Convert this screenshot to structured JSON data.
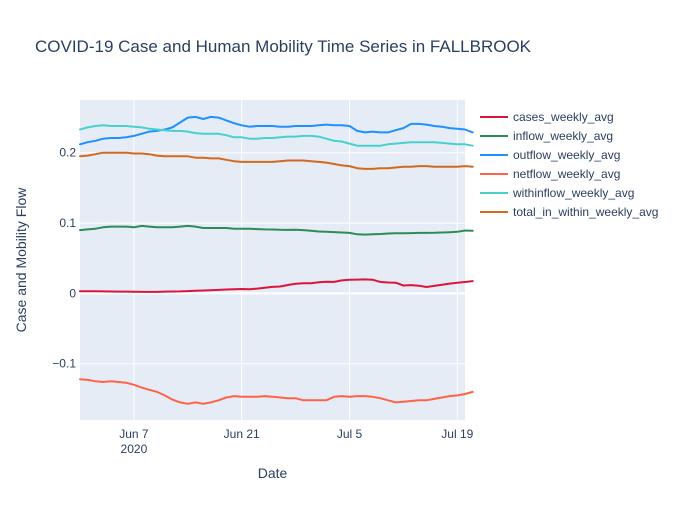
{
  "chart_data": {
    "type": "line",
    "title": "COVID-19 Case and Human Mobility Time Series in FALLBROOK",
    "xlabel": "Date",
    "ylabel": "Case and Mobility Flow",
    "x_start": "2020-05-31",
    "x_ticks": [
      {
        "date": "2020-06-07",
        "label": "Jun 7"
      },
      {
        "date": "2020-06-21",
        "label": "Jun 21"
      },
      {
        "date": "2020-07-05",
        "label": "Jul 5"
      },
      {
        "date": "2020-07-19",
        "label": "Jul 19"
      }
    ],
    "x_year_label": "2020",
    "xlim": [
      "2020-05-31",
      "2020-07-20"
    ],
    "ylim": [
      -0.18,
      0.275
    ],
    "y_ticks": [
      {
        "value": -0.1,
        "label": "−0.1"
      },
      {
        "value": 0,
        "label": "0"
      },
      {
        "value": 0.1,
        "label": "0.1"
      },
      {
        "value": 0.2,
        "label": "0.2"
      }
    ],
    "legend_position": "right",
    "grid": true,
    "colors": {
      "plot_bg": "#E5ECF6",
      "grid": "#ffffff",
      "text": "#2a3f5f"
    },
    "series": [
      {
        "name": "cases_weekly_avg",
        "color": "#DC143C",
        "values": [
          0.003,
          0.003,
          0.003,
          0.0028,
          0.0027,
          0.0026,
          0.0025,
          0.0024,
          0.0022,
          0.0021,
          0.0022,
          0.0025,
          0.0027,
          0.0029,
          0.0033,
          0.0037,
          0.0041,
          0.0045,
          0.005,
          0.0055,
          0.006,
          0.0062,
          0.006,
          0.0068,
          0.0081,
          0.0093,
          0.0098,
          0.0119,
          0.0136,
          0.0143,
          0.0145,
          0.016,
          0.0166,
          0.0164,
          0.0185,
          0.0195,
          0.0197,
          0.0199,
          0.0195,
          0.0164,
          0.0155,
          0.0152,
          0.0113,
          0.0118,
          0.011,
          0.0091,
          0.0107,
          0.0124,
          0.0139,
          0.0151,
          0.0162,
          0.0175
        ]
      },
      {
        "name": "inflow_weekly_avg",
        "color": "#2E8B57",
        "values": [
          0.09,
          0.091,
          0.092,
          0.094,
          0.095,
          0.095,
          0.095,
          0.094,
          0.096,
          0.095,
          0.094,
          0.094,
          0.094,
          0.095,
          0.096,
          0.095,
          0.093,
          0.093,
          0.093,
          0.093,
          0.092,
          0.092,
          0.092,
          0.0915,
          0.091,
          0.0908,
          0.0905,
          0.0903,
          0.0905,
          0.09,
          0.089,
          0.088,
          0.0878,
          0.0872,
          0.0866,
          0.086,
          0.084,
          0.0836,
          0.084,
          0.0845,
          0.0852,
          0.0854,
          0.0855,
          0.0857,
          0.086,
          0.086,
          0.0862,
          0.0866,
          0.087,
          0.0876,
          0.0895,
          0.089
        ]
      },
      {
        "name": "outflow_weekly_avg",
        "color": "#1E90FF",
        "values": [
          0.212,
          0.215,
          0.217,
          0.22,
          0.221,
          0.221,
          0.222,
          0.224,
          0.227,
          0.23,
          0.231,
          0.233,
          0.236,
          0.243,
          0.25,
          0.251,
          0.248,
          0.251,
          0.25,
          0.246,
          0.242,
          0.239,
          0.237,
          0.238,
          0.238,
          0.238,
          0.237,
          0.237,
          0.238,
          0.238,
          0.238,
          0.239,
          0.24,
          0.239,
          0.239,
          0.238,
          0.231,
          0.229,
          0.23,
          0.229,
          0.229,
          0.232,
          0.235,
          0.241,
          0.241,
          0.24,
          0.238,
          0.237,
          0.235,
          0.234,
          0.233,
          0.229
        ]
      },
      {
        "name": "netflow_weekly_avg",
        "color": "#FF6347",
        "values": [
          -0.122,
          -0.123,
          -0.125,
          -0.126,
          -0.125,
          -0.126,
          -0.127,
          -0.13,
          -0.134,
          -0.137,
          -0.14,
          -0.145,
          -0.151,
          -0.155,
          -0.157,
          -0.155,
          -0.157,
          -0.155,
          -0.152,
          -0.148,
          -0.146,
          -0.147,
          -0.147,
          -0.147,
          -0.146,
          -0.147,
          -0.148,
          -0.149,
          -0.149,
          -0.152,
          -0.152,
          -0.152,
          -0.152,
          -0.147,
          -0.146,
          -0.147,
          -0.146,
          -0.146,
          -0.147,
          -0.149,
          -0.152,
          -0.155,
          -0.154,
          -0.153,
          -0.152,
          -0.152,
          -0.15,
          -0.148,
          -0.146,
          -0.145,
          -0.143,
          -0.14
        ]
      },
      {
        "name": "withinflow_weekly_avg",
        "color": "#48D1CC",
        "values": [
          0.233,
          0.236,
          0.238,
          0.239,
          0.238,
          0.238,
          0.238,
          0.237,
          0.236,
          0.234,
          0.233,
          0.232,
          0.231,
          0.231,
          0.23,
          0.228,
          0.227,
          0.227,
          0.227,
          0.225,
          0.222,
          0.222,
          0.22,
          0.22,
          0.221,
          0.221,
          0.222,
          0.223,
          0.223,
          0.224,
          0.224,
          0.223,
          0.22,
          0.217,
          0.216,
          0.213,
          0.21,
          0.21,
          0.21,
          0.21,
          0.212,
          0.213,
          0.214,
          0.215,
          0.215,
          0.215,
          0.215,
          0.214,
          0.213,
          0.212,
          0.212,
          0.21
        ]
      },
      {
        "name": "total_in_within_weekly_avg",
        "color": "#D2691E",
        "values": [
          0.195,
          0.196,
          0.198,
          0.2,
          0.2,
          0.2,
          0.2,
          0.199,
          0.199,
          0.198,
          0.196,
          0.195,
          0.195,
          0.195,
          0.195,
          0.193,
          0.193,
          0.192,
          0.192,
          0.19,
          0.188,
          0.187,
          0.187,
          0.187,
          0.187,
          0.187,
          0.188,
          0.189,
          0.189,
          0.189,
          0.188,
          0.187,
          0.186,
          0.184,
          0.182,
          0.181,
          0.178,
          0.177,
          0.177,
          0.178,
          0.178,
          0.179,
          0.18,
          0.18,
          0.181,
          0.181,
          0.18,
          0.18,
          0.18,
          0.18,
          0.181,
          0.18
        ]
      }
    ]
  }
}
